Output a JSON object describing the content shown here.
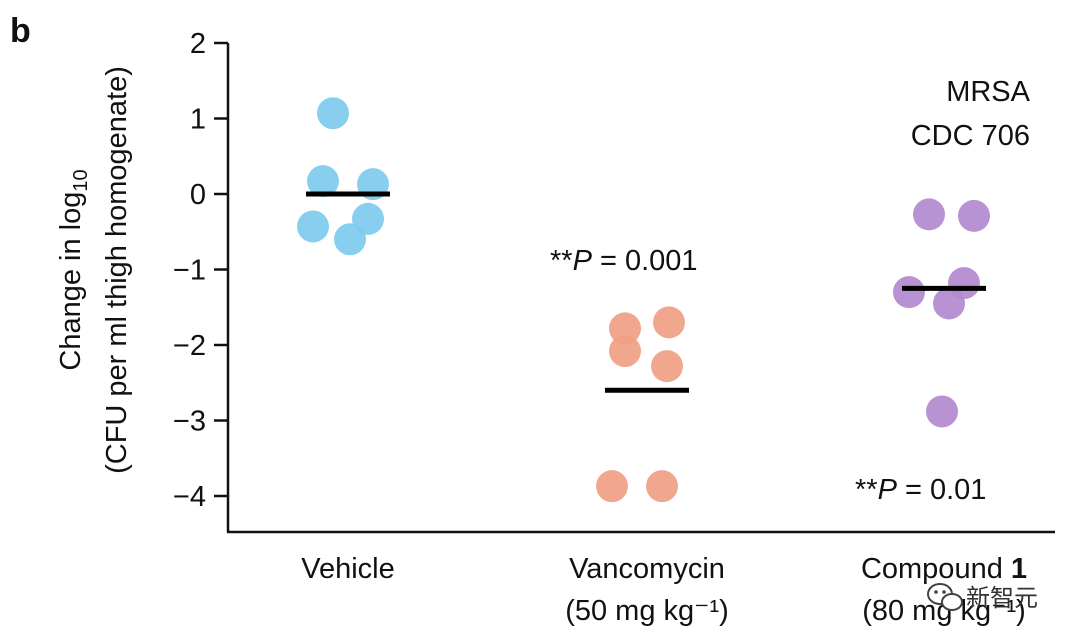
{
  "chart_data": {
    "type": "scatter",
    "panel_label": "b",
    "ylabel_line1": "Change in log",
    "ylabel_sub": "10",
    "ylabel_line2": "(CFU per ml thigh homogenate)",
    "ylim": [
      -4.5,
      2
    ],
    "yticks": [
      2,
      1,
      0,
      -1,
      -2,
      -3,
      -4
    ],
    "ytick_labels": [
      "2",
      "1",
      "0",
      "−1",
      "−2",
      "−3",
      "−4"
    ],
    "categories": [
      {
        "line1": "Vehicle",
        "line2": ""
      },
      {
        "line1": "Vancomycin",
        "line2": "(50 mg kg⁻¹)"
      },
      {
        "line1": "Compound 1",
        "line2": "(80 mg kg⁻¹)"
      }
    ],
    "series": [
      {
        "category": "Vehicle",
        "color": "#7ecbee",
        "mean": 0.0,
        "points": [
          {
            "offset": -0.15,
            "y": 1.07
          },
          {
            "offset": -0.25,
            "y": 0.17
          },
          {
            "offset": 0.25,
            "y": 0.13
          },
          {
            "offset": 0.2,
            "y": -0.33
          },
          {
            "offset": -0.35,
            "y": -0.43
          },
          {
            "offset": 0.02,
            "y": -0.6
          }
        ]
      },
      {
        "category": "Vancomycin",
        "color": "#ef9f84",
        "mean": -2.6,
        "points": [
          {
            "offset": -0.22,
            "y": -1.78
          },
          {
            "offset": 0.22,
            "y": -1.7
          },
          {
            "offset": -0.22,
            "y": -2.08
          },
          {
            "offset": 0.2,
            "y": -2.28
          },
          {
            "offset": -0.35,
            "y": -3.87
          },
          {
            "offset": 0.15,
            "y": -3.87
          }
        ]
      },
      {
        "category": "Compound 1",
        "color": "#b289cf",
        "mean": -1.25,
        "points": [
          {
            "offset": -0.15,
            "y": -0.27
          },
          {
            "offset": 0.3,
            "y": -0.29
          },
          {
            "offset": -0.35,
            "y": -1.3
          },
          {
            "offset": 0.2,
            "y": -1.18
          },
          {
            "offset": 0.05,
            "y": -1.45
          },
          {
            "offset": -0.02,
            "y": -2.88
          }
        ]
      }
    ],
    "annotations": {
      "strain_line1": "MRSA",
      "strain_line2": "CDC 706",
      "vanco_stars": "**",
      "vanco_p_letter": "P",
      "vanco_p_value": " = 0.001",
      "cmpd_stars": "**",
      "cmpd_p_letter": "P",
      "cmpd_p_value": " = 0.01"
    }
  },
  "watermark": {
    "text": "新智元",
    "icon": "wechat-icon"
  }
}
